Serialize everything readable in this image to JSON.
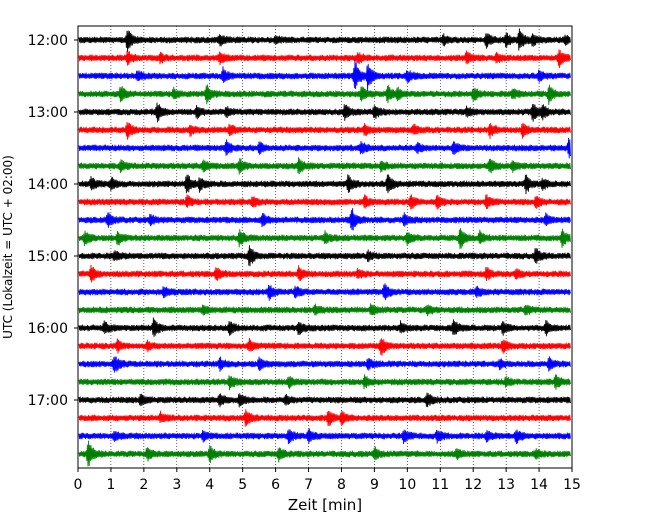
{
  "chart_data": {
    "type": "seismogram",
    "xlabel": "Zeit  [min]",
    "ylabel": "UTC (Lokalzeit = UTC + 02:00)",
    "xlim": [
      0,
      15
    ],
    "x_ticks": [
      0,
      1,
      2,
      3,
      4,
      5,
      6,
      7,
      8,
      9,
      10,
      11,
      12,
      13,
      14,
      15
    ],
    "y_ticks": [
      {
        "label": "12:00",
        "row": 0
      },
      {
        "label": "13:00",
        "row": 4
      },
      {
        "label": "14:00",
        "row": 8
      },
      {
        "label": "15:00",
        "row": 12
      },
      {
        "label": "16:00",
        "row": 16
      },
      {
        "label": "17:00",
        "row": 20
      }
    ],
    "row_minutes": 15,
    "start_time": "12:00",
    "grid": {
      "x": true,
      "style": "dotted"
    },
    "color_cycle": [
      "#000000",
      "#ff0000",
      "#0000ff",
      "#008000"
    ],
    "traces": [
      {
        "start": "12:00",
        "events": [
          [
            1.5,
            1.0
          ],
          [
            4.3,
            0.5
          ],
          [
            6,
            0.3
          ],
          [
            11.1,
            0.4
          ],
          [
            12.4,
            0.7
          ],
          [
            13,
            0.6
          ],
          [
            13.4,
            0.9
          ],
          [
            13.8,
            0.5
          ],
          [
            14.8,
            0.4
          ]
        ]
      },
      {
        "start": "12:15",
        "events": [
          [
            1.5,
            0.6
          ],
          [
            2.5,
            0.4
          ],
          [
            4.3,
            0.5
          ],
          [
            8.5,
            0.4
          ],
          [
            11.8,
            0.5
          ],
          [
            12.7,
            0.4
          ],
          [
            14.6,
            0.8
          ]
        ]
      },
      {
        "start": "12:30",
        "events": [
          [
            1.8,
            0.4
          ],
          [
            4.4,
            0.6
          ],
          [
            8.4,
            1.4
          ],
          [
            8.8,
            1.2
          ],
          [
            10,
            0.5
          ],
          [
            14,
            0.4
          ]
        ]
      },
      {
        "start": "12:45",
        "events": [
          [
            1.3,
            0.7
          ],
          [
            2.9,
            0.4
          ],
          [
            3.9,
            0.8
          ],
          [
            8.6,
            0.6
          ],
          [
            9.4,
            0.8
          ],
          [
            9.7,
            0.5
          ],
          [
            12,
            0.6
          ],
          [
            13.2,
            0.4
          ],
          [
            14.3,
            0.8
          ]
        ]
      },
      {
        "start": "13:00",
        "events": [
          [
            2.4,
            0.9
          ],
          [
            3.6,
            0.5
          ],
          [
            4.5,
            0.4
          ],
          [
            8.1,
            0.7
          ],
          [
            9,
            0.6
          ],
          [
            11.8,
            0.4
          ],
          [
            13.8,
            0.9
          ],
          [
            14.1,
            0.6
          ]
        ]
      },
      {
        "start": "13:15",
        "events": [
          [
            1.5,
            0.7
          ],
          [
            3.4,
            0.4
          ],
          [
            4.6,
            0.5
          ],
          [
            8.7,
            0.4
          ],
          [
            10.2,
            0.4
          ],
          [
            12.5,
            0.6
          ],
          [
            13.5,
            0.7
          ]
        ]
      },
      {
        "start": "13:30",
        "events": [
          [
            4.5,
            0.6
          ],
          [
            5.5,
            0.5
          ],
          [
            8.6,
            0.5
          ],
          [
            10.3,
            0.4
          ],
          [
            11.4,
            0.5
          ],
          [
            14.9,
            1.0
          ]
        ]
      },
      {
        "start": "13:45",
        "events": [
          [
            1.3,
            0.5
          ],
          [
            3.8,
            0.5
          ],
          [
            4.9,
            0.6
          ],
          [
            6.7,
            0.7
          ],
          [
            9.2,
            0.4
          ],
          [
            12.5,
            0.6
          ],
          [
            13.2,
            0.4
          ]
        ]
      },
      {
        "start": "14:00",
        "events": [
          [
            0.4,
            0.6
          ],
          [
            1,
            0.5
          ],
          [
            3.3,
            0.9
          ],
          [
            3.7,
            0.6
          ],
          [
            8.2,
            0.8
          ],
          [
            9.4,
            0.9
          ],
          [
            13.6,
            0.8
          ],
          [
            14.1,
            0.5
          ]
        ]
      },
      {
        "start": "14:15",
        "events": [
          [
            3.3,
            0.5
          ],
          [
            5.3,
            0.4
          ],
          [
            8.7,
            0.5
          ],
          [
            10.1,
            0.6
          ],
          [
            10.9,
            0.6
          ],
          [
            12.4,
            0.6
          ],
          [
            13.9,
            0.5
          ]
        ]
      },
      {
        "start": "14:30",
        "events": [
          [
            0.9,
            0.6
          ],
          [
            2.2,
            0.4
          ],
          [
            5.6,
            0.6
          ],
          [
            8.3,
            1.1
          ],
          [
            9.9,
            0.5
          ],
          [
            14.2,
            0.5
          ]
        ]
      },
      {
        "start": "14:45",
        "events": [
          [
            0.2,
            0.6
          ],
          [
            1.2,
            0.6
          ],
          [
            4.9,
            0.7
          ],
          [
            7.5,
            0.5
          ],
          [
            10,
            0.6
          ],
          [
            11.6,
            0.9
          ],
          [
            12.2,
            0.5
          ],
          [
            14.7,
            0.7
          ]
        ]
      },
      {
        "start": "15:00",
        "events": [
          [
            1.1,
            0.4
          ],
          [
            5.2,
            0.9
          ],
          [
            8.8,
            0.4
          ],
          [
            13.9,
            0.7
          ]
        ]
      },
      {
        "start": "15:15",
        "events": [
          [
            0.4,
            0.7
          ],
          [
            4.2,
            0.6
          ],
          [
            6.7,
            0.6
          ],
          [
            8.5,
            0.4
          ],
          [
            12.4,
            0.5
          ],
          [
            13.3,
            0.4
          ]
        ]
      },
      {
        "start": "15:30",
        "events": [
          [
            2.6,
            0.5
          ],
          [
            5.8,
            0.7
          ],
          [
            6.6,
            0.5
          ],
          [
            9.3,
            0.7
          ],
          [
            12.1,
            0.4
          ]
        ]
      },
      {
        "start": "15:45",
        "events": [
          [
            3.8,
            0.4
          ],
          [
            7.2,
            0.4
          ],
          [
            8.9,
            0.5
          ],
          [
            10.6,
            0.4
          ],
          [
            13.6,
            0.4
          ]
        ]
      },
      {
        "start": "16:00",
        "events": [
          [
            0.8,
            0.5
          ],
          [
            2.3,
            0.9
          ],
          [
            4.6,
            0.6
          ],
          [
            6.7,
            0.6
          ],
          [
            9.8,
            0.5
          ],
          [
            11.4,
            0.7
          ],
          [
            12.9,
            0.6
          ],
          [
            14.2,
            0.6
          ]
        ]
      },
      {
        "start": "16:15",
        "events": [
          [
            1.2,
            0.5
          ],
          [
            2.1,
            0.4
          ],
          [
            5.2,
            0.5
          ],
          [
            9.2,
            0.8
          ],
          [
            12.9,
            0.6
          ]
        ]
      },
      {
        "start": "16:30",
        "events": [
          [
            1.1,
            0.8
          ],
          [
            4.3,
            0.5
          ],
          [
            5.5,
            0.5
          ],
          [
            8.8,
            0.5
          ],
          [
            12.8,
            0.4
          ],
          [
            14.3,
            0.5
          ]
        ]
      },
      {
        "start": "16:45",
        "events": [
          [
            4.6,
            0.6
          ],
          [
            6.4,
            0.5
          ],
          [
            8.7,
            0.5
          ],
          [
            13,
            0.4
          ],
          [
            14.5,
            0.6
          ]
        ]
      },
      {
        "start": "17:00",
        "events": [
          [
            1.9,
            0.5
          ],
          [
            4.3,
            0.5
          ],
          [
            4.9,
            0.6
          ],
          [
            6.3,
            0.4
          ],
          [
            10.6,
            0.6
          ]
        ]
      },
      {
        "start": "17:15",
        "events": [
          [
            2.5,
            0.4
          ],
          [
            5.1,
            0.8
          ],
          [
            7.6,
            0.7
          ],
          [
            8,
            0.6
          ]
        ]
      },
      {
        "start": "17:30",
        "events": [
          [
            1.1,
            0.4
          ],
          [
            3.8,
            0.4
          ],
          [
            6.4,
            0.7
          ],
          [
            7,
            0.6
          ],
          [
            9.9,
            0.6
          ],
          [
            10.9,
            0.5
          ],
          [
            12.4,
            0.4
          ],
          [
            13.3,
            0.6
          ]
        ]
      },
      {
        "start": "17:45",
        "events": [
          [
            0.3,
            1.2
          ],
          [
            2.1,
            0.5
          ],
          [
            4,
            0.7
          ],
          [
            6.1,
            0.6
          ],
          [
            9,
            0.5
          ],
          [
            11.5,
            0.4
          ],
          [
            13.9,
            0.4
          ]
        ]
      }
    ]
  }
}
